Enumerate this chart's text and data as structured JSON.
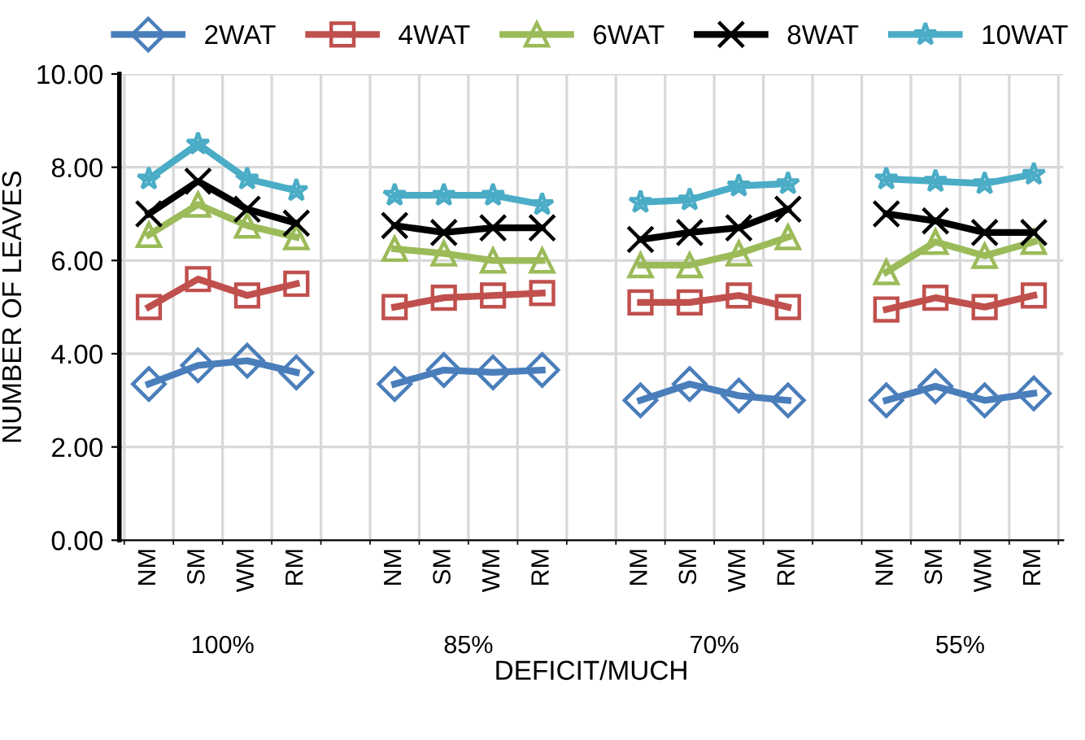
{
  "chart_data": {
    "type": "line",
    "xlabel": "DEFICIT/MUCH",
    "ylabel": "NUMBER OF LEAVES",
    "categories": [
      "NM",
      "SM",
      "WM",
      "RM",
      null,
      "NM",
      "SM",
      "WM",
      "RM",
      null,
      "NM",
      "SM",
      "WM",
      "RM",
      null,
      "NM",
      "SM",
      "WM",
      "RM"
    ],
    "annotations": [
      "100%",
      "85%",
      "70%",
      "55%"
    ],
    "series": [
      {
        "name": "2WAT",
        "color": "#4a7ebb",
        "marker": "diamond",
        "values": [
          3.35,
          3.75,
          3.85,
          3.6,
          null,
          3.35,
          3.65,
          3.6,
          3.65,
          null,
          3.0,
          3.35,
          3.1,
          3.0,
          null,
          3.0,
          3.3,
          3.0,
          3.15
        ]
      },
      {
        "name": "4WAT",
        "color": "#c0504d",
        "marker": "square",
        "values": [
          5.0,
          5.6,
          5.25,
          5.5,
          null,
          5.0,
          5.2,
          5.25,
          5.3,
          null,
          5.1,
          5.1,
          5.25,
          5.0,
          null,
          4.95,
          5.2,
          5.0,
          5.25
        ]
      },
      {
        "name": "6WAT",
        "color": "#9bbb59",
        "marker": "triangle",
        "values": [
          6.55,
          7.2,
          6.75,
          6.5,
          null,
          6.25,
          6.15,
          6.0,
          6.0,
          null,
          5.9,
          5.9,
          6.15,
          6.5,
          null,
          5.75,
          6.4,
          6.1,
          6.4
        ]
      },
      {
        "name": "8WAT",
        "color": "#000000",
        "marker": "cross",
        "values": [
          7.0,
          7.7,
          7.1,
          6.8,
          null,
          6.75,
          6.6,
          6.7,
          6.7,
          null,
          6.45,
          6.6,
          6.7,
          7.1,
          null,
          7.0,
          6.85,
          6.6,
          6.6
        ]
      },
      {
        "name": "10WAT",
        "color": "#4bacc6",
        "marker": "star",
        "values": [
          7.75,
          8.5,
          7.75,
          7.5,
          null,
          7.4,
          7.4,
          7.4,
          7.2,
          null,
          7.25,
          7.3,
          7.6,
          7.65,
          null,
          7.75,
          7.7,
          7.65,
          7.85
        ]
      }
    ],
    "ylim": [
      0,
      10
    ],
    "yticks": [
      {
        "value": 0,
        "label": "0.00"
      },
      {
        "value": 2,
        "label": "2.00"
      },
      {
        "value": 4,
        "label": "4.00"
      },
      {
        "value": 6,
        "label": "6.00"
      },
      {
        "value": 8,
        "label": "8.00"
      },
      {
        "value": 10,
        "label": "10.00"
      }
    ],
    "grid": true,
    "legend": "top",
    "line_style": "solid"
  }
}
